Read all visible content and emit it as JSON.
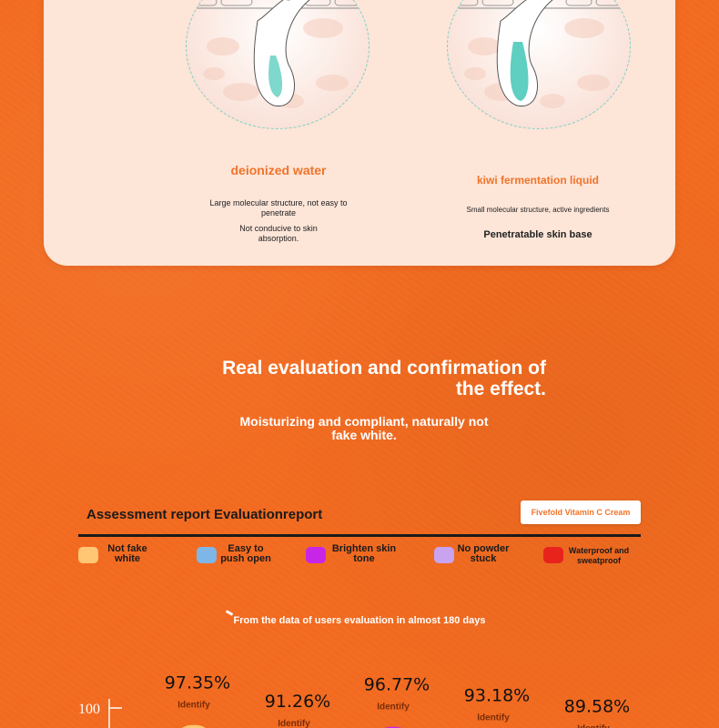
{
  "comparison": {
    "left": {
      "title": "deionized water",
      "desc1": "Large molecular structure, not easy to penetrate",
      "desc2": "Not conducive to skin absorption."
    },
    "right": {
      "title": "kiwi fermentation liquid",
      "desc1": "Small molecular structure, active ingredients",
      "desc2": "Penetratable skin base"
    }
  },
  "headline": {
    "line1": "Real evaluation and confirmation of",
    "line2": "the effect.",
    "sub1": "Moisturizing and compliant, naturally not",
    "sub2": "fake white."
  },
  "report": {
    "title": "Assessment report Evaluationreport",
    "product": "Fivefold Vitamin C Cream",
    "source": "From the data of users evaluation in almost 180 days"
  },
  "colors": {
    "background": "#f26a1f",
    "accent": "#f0742a"
  },
  "chart_data": {
    "type": "bar",
    "categories": [
      "Not fake white",
      "Easy to push open",
      "Brighten skin tone",
      "No powder stuck",
      "Waterproof and sweatproof"
    ],
    "legend": [
      {
        "label_line1": "Not fake",
        "label_line2": "white",
        "color": "#ffc773"
      },
      {
        "label_line1": "Easy to",
        "label_line2": "push open",
        "color": "#7fb6e8"
      },
      {
        "label_line1": "Brighten skin",
        "label_line2": "tone",
        "color": "#c726e8"
      },
      {
        "label_line1": "No powder",
        "label_line2": "stuck",
        "color": "#c9a2f0"
      },
      {
        "label_line1": "Waterproof and",
        "label_line2": "sweatproof",
        "color": "#e8231c"
      }
    ],
    "values": [
      97.35,
      91.26,
      96.77,
      93.18,
      89.58
    ],
    "value_labels": [
      "97.35%",
      "91.26%",
      "96.77%",
      "93.18%",
      "89.58%"
    ],
    "sub_label": "Identify",
    "y_ticks": [
      "100"
    ],
    "ylim": [
      0,
      100
    ]
  }
}
